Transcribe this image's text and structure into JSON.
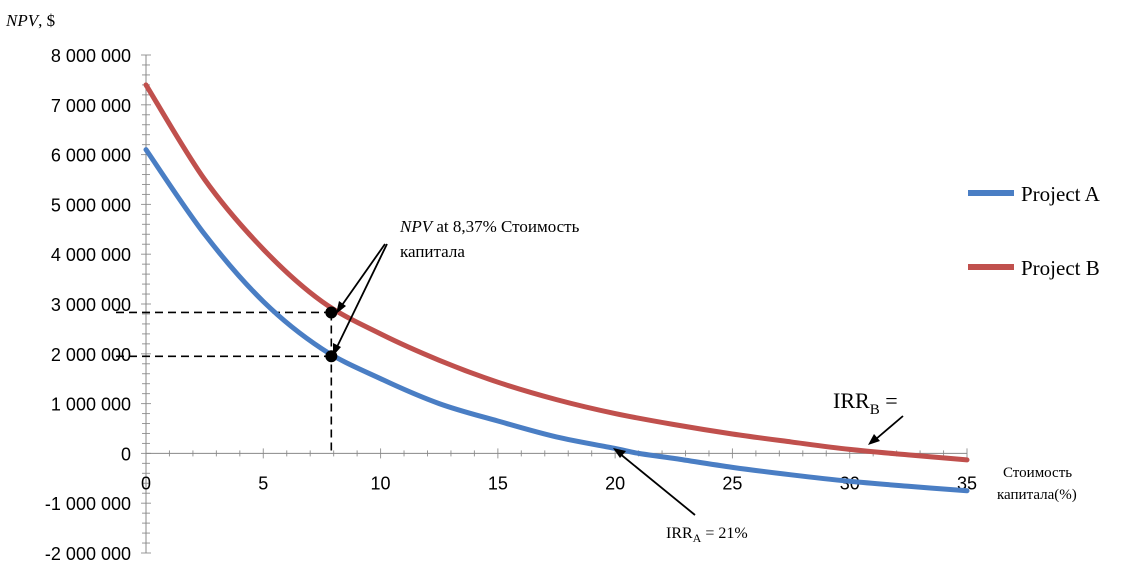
{
  "chart_data": {
    "type": "line",
    "title": "",
    "ylabel": "NPV, $",
    "ylabel_parts": {
      "var": "NPV",
      "unit": ", $"
    },
    "xlabel_lines": [
      "Стоимость",
      "капитала(%)"
    ],
    "xlim": [
      0,
      35
    ],
    "ylim": [
      -2000000,
      8000000
    ],
    "x_ticks": [
      0,
      5,
      10,
      15,
      20,
      25,
      30,
      35
    ],
    "x_tick_labels": [
      "0",
      "5",
      "10",
      "15",
      "20",
      "25",
      "30",
      "35"
    ],
    "y_ticks": [
      8000000,
      7000000,
      6000000,
      5000000,
      4000000,
      3000000,
      2000000,
      1000000,
      0,
      -1000000,
      -2000000
    ],
    "y_tick_labels": [
      "8 000 000",
      "7 000 000",
      "6 000 000",
      "5 000 000",
      "4 000 000",
      "3 000 000",
      "2 000 000",
      "1 000 000",
      "0",
      "-1 000 000",
      "-2 000 000"
    ],
    "grid": false,
    "legend_position": "right",
    "series": [
      {
        "name": "Project A",
        "color": "#4a7ec4",
        "x": [
          0,
          2.5,
          5,
          7.5,
          10,
          12.5,
          15,
          17.5,
          20,
          21,
          22.5,
          25,
          27.5,
          30,
          32.5,
          35
        ],
        "y": [
          6100000,
          4400000,
          3050000,
          2100000,
          1500000,
          1000000,
          650000,
          330000,
          100000,
          0,
          -100000,
          -280000,
          -430000,
          -560000,
          -660000,
          -750000
        ]
      },
      {
        "name": "Project B",
        "color": "#c0504d",
        "x": [
          0,
          2.5,
          5,
          7.5,
          10,
          12.5,
          15,
          17.5,
          20,
          22.5,
          25,
          27.5,
          30,
          32.5,
          35
        ],
        "y": [
          7400000,
          5500000,
          4100000,
          3050000,
          2400000,
          1870000,
          1430000,
          1080000,
          800000,
          580000,
          390000,
          230000,
          80000,
          -30000,
          -130000
        ]
      }
    ],
    "points": [
      {
        "x": 7.9,
        "y": 2830000
      },
      {
        "x": 7.9,
        "y": 1950000
      }
    ],
    "annotations": {
      "npv_label_var": "NPV",
      "npv_label_rest": " at 8,37% Стоимость",
      "npv_label_line2": "капитала",
      "irr_a_main": "IRR",
      "irr_a_sub": "A",
      "irr_a_rest": " = 21%",
      "irr_b_main": "IRR",
      "irr_b_sub": "B",
      "irr_b_rest": " ="
    }
  }
}
